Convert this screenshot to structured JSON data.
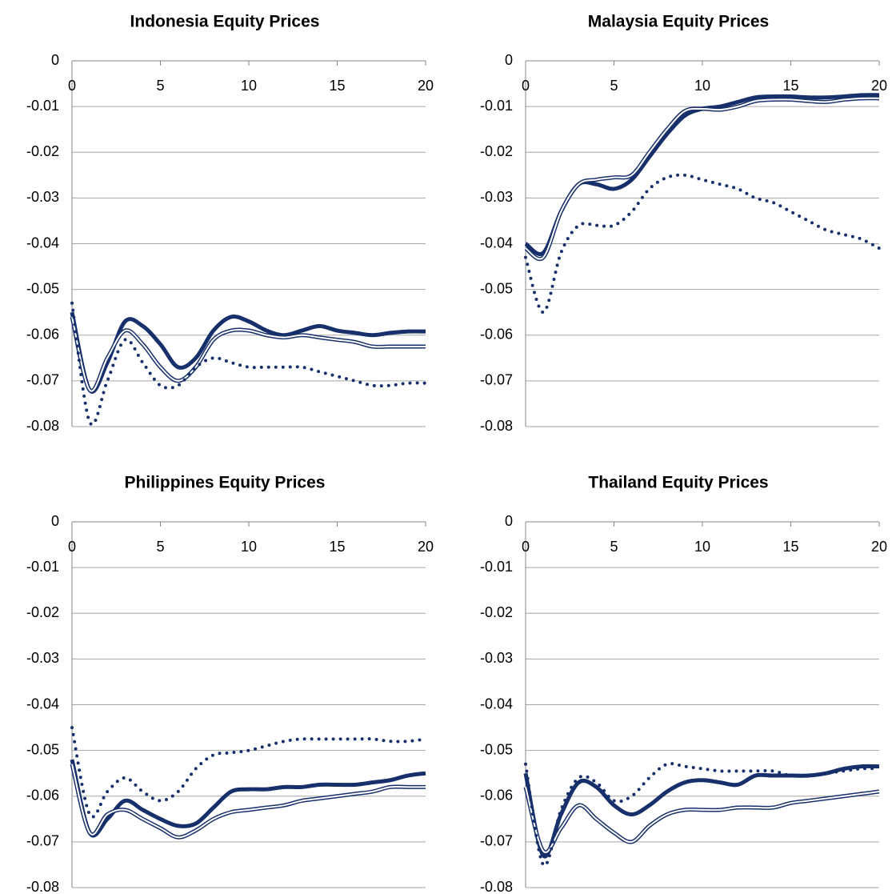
{
  "chart_data": [
    {
      "type": "line",
      "title": "Indonesia Equity Prices",
      "x": [
        0,
        1,
        2,
        3,
        4,
        5,
        6,
        7,
        8,
        9,
        10,
        11,
        12,
        13,
        14,
        15,
        16,
        17,
        18,
        19,
        20
      ],
      "xlim": [
        0,
        20
      ],
      "xticks": [
        0,
        5,
        10,
        15,
        20
      ],
      "ylim": [
        -0.08,
        0
      ],
      "yticks": [
        0,
        -0.01,
        -0.02,
        -0.03,
        -0.04,
        -0.05,
        -0.06,
        -0.07,
        -0.08
      ],
      "grid": true,
      "series": [
        {
          "color": "#17306b",
          "style": "thick",
          "values": [
            -0.055,
            -0.072,
            -0.066,
            -0.057,
            -0.058,
            -0.062,
            -0.067,
            -0.065,
            -0.059,
            -0.056,
            -0.057,
            -0.059,
            -0.06,
            -0.059,
            -0.058,
            -0.059,
            -0.0595,
            -0.06,
            -0.0595,
            -0.0592,
            -0.0592
          ]
        },
        {
          "color": "#17306b",
          "style": "double",
          "values": [
            -0.056,
            -0.072,
            -0.065,
            -0.059,
            -0.062,
            -0.067,
            -0.07,
            -0.067,
            -0.061,
            -0.059,
            -0.059,
            -0.06,
            -0.0605,
            -0.06,
            -0.0605,
            -0.061,
            -0.0615,
            -0.0625,
            -0.0625,
            -0.0625,
            -0.0625
          ]
        },
        {
          "color": "#17306b",
          "style": "dotted",
          "values": [
            -0.053,
            -0.079,
            -0.07,
            -0.061,
            -0.066,
            -0.071,
            -0.071,
            -0.067,
            -0.065,
            -0.066,
            -0.067,
            -0.067,
            -0.067,
            -0.067,
            -0.068,
            -0.069,
            -0.07,
            -0.071,
            -0.071,
            -0.0705,
            -0.0705
          ]
        }
      ]
    },
    {
      "type": "line",
      "title": "Malaysia Equity Prices",
      "x": [
        0,
        1,
        2,
        3,
        4,
        5,
        6,
        7,
        8,
        9,
        10,
        11,
        12,
        13,
        14,
        15,
        16,
        17,
        18,
        19,
        20
      ],
      "xlim": [
        0,
        20
      ],
      "xticks": [
        0,
        5,
        10,
        15,
        20
      ],
      "ylim": [
        -0.08,
        0
      ],
      "yticks": [
        0,
        -0.01,
        -0.02,
        -0.03,
        -0.04,
        -0.05,
        -0.06,
        -0.07,
        -0.08
      ],
      "grid": true,
      "series": [
        {
          "color": "#17306b",
          "style": "thick",
          "values": [
            -0.04,
            -0.042,
            -0.033,
            -0.027,
            -0.027,
            -0.028,
            -0.026,
            -0.021,
            -0.016,
            -0.012,
            -0.0105,
            -0.01,
            -0.009,
            -0.008,
            -0.0078,
            -0.0078,
            -0.008,
            -0.008,
            -0.0078,
            -0.0075,
            -0.0075
          ]
        },
        {
          "color": "#17306b",
          "style": "double",
          "values": [
            -0.041,
            -0.043,
            -0.033,
            -0.027,
            -0.026,
            -0.0255,
            -0.025,
            -0.02,
            -0.015,
            -0.011,
            -0.0105,
            -0.0107,
            -0.01,
            -0.0088,
            -0.0085,
            -0.0085,
            -0.0088,
            -0.009,
            -0.0085,
            -0.0082,
            -0.0082
          ]
        },
        {
          "color": "#17306b",
          "style": "dotted",
          "values": [
            -0.043,
            -0.055,
            -0.042,
            -0.036,
            -0.036,
            -0.036,
            -0.033,
            -0.028,
            -0.0255,
            -0.025,
            -0.026,
            -0.027,
            -0.028,
            -0.03,
            -0.031,
            -0.033,
            -0.035,
            -0.037,
            -0.038,
            -0.039,
            -0.041
          ]
        }
      ]
    },
    {
      "type": "line",
      "title": "Philippines Equity Prices",
      "x": [
        0,
        1,
        2,
        3,
        4,
        5,
        6,
        7,
        8,
        9,
        10,
        11,
        12,
        13,
        14,
        15,
        16,
        17,
        18,
        19,
        20
      ],
      "xlim": [
        0,
        20
      ],
      "xticks": [
        0,
        5,
        10,
        15,
        20
      ],
      "ylim": [
        -0.08,
        0
      ],
      "yticks": [
        0,
        -0.01,
        -0.02,
        -0.03,
        -0.04,
        -0.05,
        -0.06,
        -0.07,
        -0.08
      ],
      "grid": true,
      "series": [
        {
          "color": "#17306b",
          "style": "thick",
          "values": [
            -0.052,
            -0.068,
            -0.065,
            -0.061,
            -0.063,
            -0.065,
            -0.0665,
            -0.066,
            -0.0625,
            -0.059,
            -0.0585,
            -0.0585,
            -0.058,
            -0.058,
            -0.0575,
            -0.0575,
            -0.0575,
            -0.057,
            -0.0565,
            -0.0555,
            -0.055
          ]
        },
        {
          "color": "#17306b",
          "style": "double",
          "values": [
            -0.053,
            -0.068,
            -0.064,
            -0.063,
            -0.065,
            -0.067,
            -0.069,
            -0.0675,
            -0.065,
            -0.0635,
            -0.063,
            -0.0625,
            -0.062,
            -0.061,
            -0.0605,
            -0.06,
            -0.0595,
            -0.059,
            -0.058,
            -0.058,
            -0.058
          ]
        },
        {
          "color": "#17306b",
          "style": "dotted",
          "values": [
            -0.045,
            -0.064,
            -0.059,
            -0.056,
            -0.059,
            -0.061,
            -0.059,
            -0.054,
            -0.051,
            -0.0505,
            -0.05,
            -0.049,
            -0.048,
            -0.0475,
            -0.0475,
            -0.0475,
            -0.0475,
            -0.0475,
            -0.048,
            -0.048,
            -0.0475
          ]
        }
      ]
    },
    {
      "type": "line",
      "title": "Thailand Equity Prices",
      "x": [
        0,
        1,
        2,
        3,
        4,
        5,
        6,
        7,
        8,
        9,
        10,
        11,
        12,
        13,
        14,
        15,
        16,
        17,
        18,
        19,
        20
      ],
      "xlim": [
        0,
        20
      ],
      "xticks": [
        0,
        5,
        10,
        15,
        20
      ],
      "ylim": [
        -0.08,
        0
      ],
      "yticks": [
        0,
        -0.01,
        -0.02,
        -0.03,
        -0.04,
        -0.05,
        -0.06,
        -0.07,
        -0.08
      ],
      "grid": true,
      "series": [
        {
          "color": "#17306b",
          "style": "thick",
          "values": [
            -0.055,
            -0.073,
            -0.064,
            -0.057,
            -0.058,
            -0.062,
            -0.064,
            -0.062,
            -0.059,
            -0.057,
            -0.0565,
            -0.057,
            -0.0575,
            -0.0555,
            -0.0555,
            -0.0555,
            -0.0555,
            -0.055,
            -0.054,
            -0.0535,
            -0.0535
          ]
        },
        {
          "color": "#17306b",
          "style": "double",
          "values": [
            -0.058,
            -0.072,
            -0.067,
            -0.062,
            -0.065,
            -0.068,
            -0.07,
            -0.0665,
            -0.064,
            -0.063,
            -0.063,
            -0.063,
            -0.0625,
            -0.0625,
            -0.0625,
            -0.0615,
            -0.061,
            -0.0605,
            -0.06,
            -0.0595,
            -0.059
          ]
        },
        {
          "color": "#17306b",
          "style": "dotted",
          "values": [
            -0.053,
            -0.075,
            -0.063,
            -0.056,
            -0.057,
            -0.061,
            -0.06,
            -0.056,
            -0.053,
            -0.0535,
            -0.054,
            -0.0545,
            -0.0545,
            -0.0545,
            -0.0545,
            -0.0555,
            -0.0555,
            -0.055,
            -0.0545,
            -0.054,
            -0.054
          ]
        }
      ]
    }
  ]
}
